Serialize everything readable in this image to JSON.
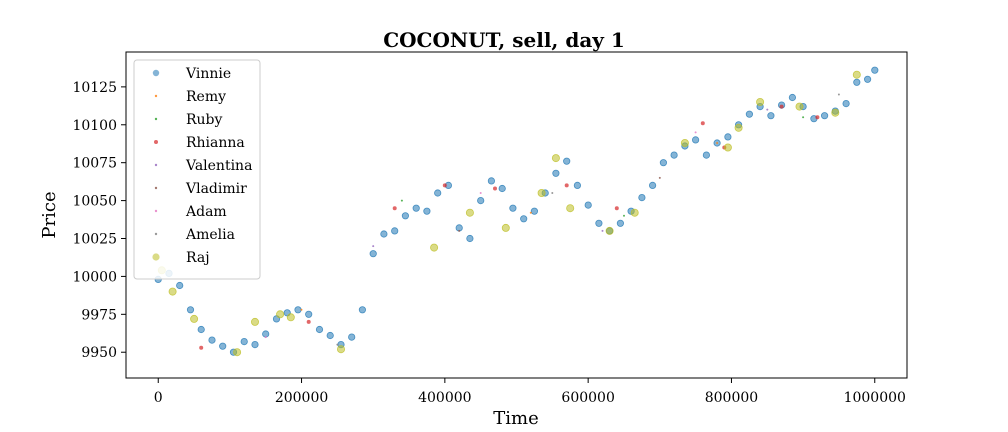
{
  "chart_data": {
    "type": "scatter",
    "title": "COCONUT, sell, day 1",
    "xlabel": "Time",
    "ylabel": "Price",
    "xlim": [
      -45000,
      1045000
    ],
    "ylim": [
      9933,
      10148
    ],
    "xticks": [
      0,
      200000,
      400000,
      600000,
      800000,
      1000000
    ],
    "xtick_labels": [
      "0",
      "200000",
      "400000",
      "600000",
      "800000",
      "1000000"
    ],
    "yticks": [
      9950,
      9975,
      10000,
      10025,
      10050,
      10075,
      10100,
      10125
    ],
    "ytick_labels": [
      "9950",
      "9975",
      "10000",
      "10025",
      "10050",
      "10075",
      "10100",
      "10125"
    ],
    "grid": false,
    "legend_position": "top-left",
    "series": [
      {
        "name": "Vinnie",
        "color": "#1f77b4",
        "opacity": 0.55,
        "size": 3.2,
        "x": [
          0,
          15000,
          30000,
          45000,
          60000,
          75000,
          90000,
          105000,
          120000,
          135000,
          150000,
          165000,
          180000,
          195000,
          210000,
          225000,
          240000,
          255000,
          270000,
          285000,
          300000,
          315000,
          330000,
          345000,
          360000,
          375000,
          390000,
          405000,
          420000,
          435000,
          450000,
          465000,
          480000,
          495000,
          510000,
          525000,
          540000,
          555000,
          570000,
          585000,
          600000,
          615000,
          630000,
          645000,
          660000,
          675000,
          690000,
          705000,
          720000,
          735000,
          750000,
          765000,
          780000,
          795000,
          810000,
          825000,
          840000,
          855000,
          870000,
          885000,
          900000,
          915000,
          930000,
          945000,
          960000,
          975000,
          990000,
          1000000
        ],
        "y": [
          9998,
          10002,
          9994,
          9978,
          9965,
          9958,
          9954,
          9950,
          9957,
          9955,
          9962,
          9972,
          9976,
          9978,
          9975,
          9965,
          9961,
          9955,
          9960,
          9978,
          10015,
          10028,
          10030,
          10040,
          10045,
          10043,
          10055,
          10060,
          10032,
          10025,
          10050,
          10063,
          10058,
          10045,
          10038,
          10043,
          10055,
          10068,
          10076,
          10060,
          10047,
          10035,
          10030,
          10035,
          10043,
          10052,
          10060,
          10075,
          10080,
          10086,
          10090,
          10080,
          10088,
          10092,
          10100,
          10107,
          10112,
          10106,
          10113,
          10118,
          10112,
          10104,
          10106,
          10109,
          10114,
          10128,
          10130,
          10136
        ]
      },
      {
        "name": "Remy",
        "color": "#ff7f0e",
        "opacity": 0.8,
        "size": 1,
        "x": [
          200000,
          520000,
          780000
        ],
        "y": [
          9978,
          10042,
          10088
        ]
      },
      {
        "name": "Ruby",
        "color": "#2ca02c",
        "opacity": 0.8,
        "size": 1,
        "x": [
          340000,
          650000,
          900000
        ],
        "y": [
          10050,
          10040,
          10105
        ]
      },
      {
        "name": "Rhianna",
        "color": "#d62728",
        "opacity": 0.7,
        "size": 2,
        "x": [
          60000,
          210000,
          330000,
          400000,
          470000,
          570000,
          640000,
          760000,
          790000,
          870000,
          920000
        ],
        "y": [
          9953,
          9970,
          10045,
          10060,
          10058,
          10060,
          10045,
          10101,
          10085,
          10112,
          10105
        ]
      },
      {
        "name": "Valentina",
        "color": "#9467bd",
        "opacity": 0.8,
        "size": 1,
        "x": [
          300000,
          620000,
          850000
        ],
        "y": [
          10020,
          10030,
          10110
        ]
      },
      {
        "name": "Vladimir",
        "color": "#8c564b",
        "opacity": 0.8,
        "size": 1,
        "x": [
          420000,
          700000
        ],
        "y": [
          10030,
          10065
        ]
      },
      {
        "name": "Adam",
        "color": "#e377c2",
        "opacity": 0.8,
        "size": 1,
        "x": [
          150000,
          450000,
          750000
        ],
        "y": [
          9960,
          10055,
          10095
        ]
      },
      {
        "name": "Amelia",
        "color": "#7f7f7f",
        "opacity": 0.8,
        "size": 1,
        "x": [
          250000,
          550000,
          950000
        ],
        "y": [
          9955,
          10055,
          10120
        ]
      },
      {
        "name": "Raj",
        "color": "#bcbd22",
        "opacity": 0.55,
        "size": 3.6,
        "x": [
          5000,
          20000,
          50000,
          110000,
          135000,
          170000,
          185000,
          255000,
          385000,
          435000,
          485000,
          535000,
          555000,
          575000,
          630000,
          665000,
          735000,
          795000,
          810000,
          840000,
          895000,
          945000,
          975000
        ],
        "y": [
          10004,
          9990,
          9972,
          9950,
          9970,
          9975,
          9973,
          9952,
          10019,
          10042,
          10032,
          10055,
          10078,
          10045,
          10030,
          10042,
          10088,
          10085,
          10098,
          10115,
          10112,
          10108,
          10133
        ]
      }
    ]
  }
}
